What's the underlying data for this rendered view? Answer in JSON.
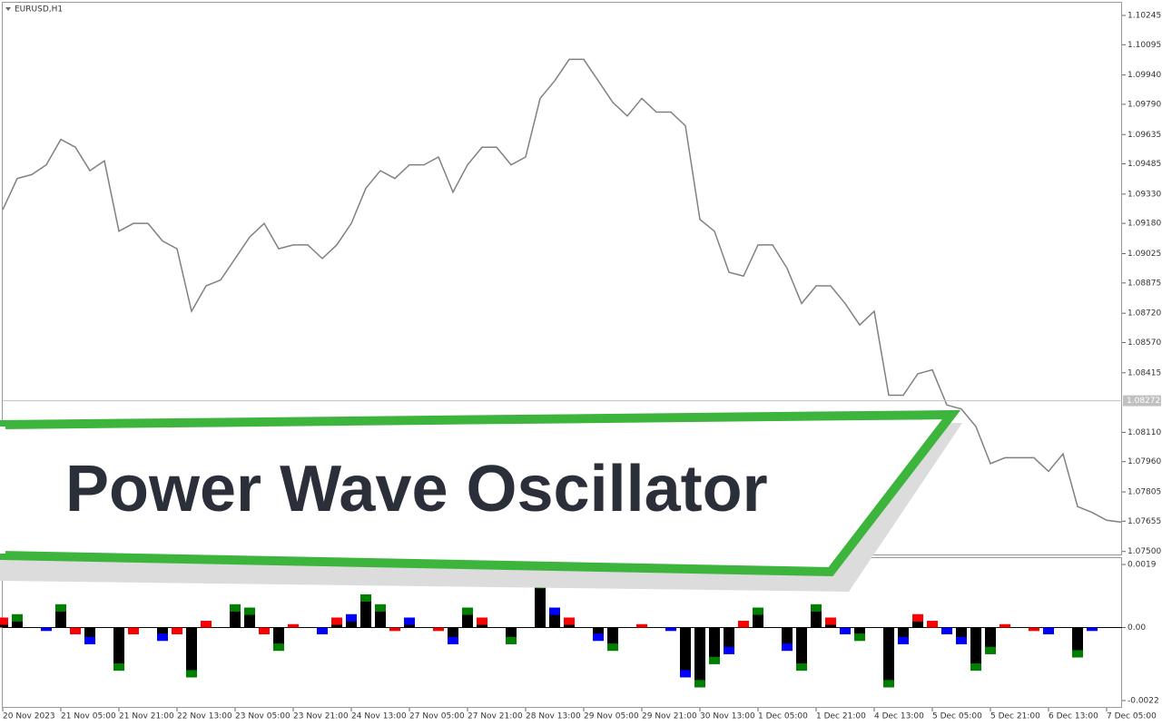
{
  "chart_data": [
    {
      "type": "line",
      "title": "EURUSD,H1",
      "color": "#808080",
      "values": [
        1.0925,
        1.0941,
        1.0943,
        1.0948,
        1.0961,
        1.0957,
        1.0945,
        1.095,
        1.0914,
        1.0918,
        1.0918,
        1.0909,
        1.0905,
        1.0873,
        1.0886,
        1.0889,
        1.09,
        1.0911,
        1.0918,
        1.0905,
        1.0907,
        1.0907,
        1.09,
        1.0907,
        1.0918,
        1.0936,
        1.0945,
        1.0941,
        1.0948,
        1.0948,
        1.0952,
        1.0934,
        1.0948,
        1.0957,
        1.0957,
        1.0948,
        1.0952,
        1.0982,
        1.0991,
        1.1002,
        1.1002,
        1.0991,
        1.098,
        1.0973,
        1.0982,
        1.0975,
        1.0975,
        1.0968,
        1.092,
        1.0914,
        1.0893,
        1.0891,
        1.0907,
        1.0907,
        1.0895,
        1.0877,
        1.0886,
        1.0886,
        1.0877,
        1.0866,
        1.0873,
        1.083,
        1.083,
        1.0841,
        1.0843,
        1.0825,
        1.0823,
        1.0814,
        1.0795,
        1.0798,
        1.0798,
        1.0798,
        1.0791,
        1.08,
        1.0773,
        1.077,
        1.0766,
        1.0765
      ],
      "ylim": [
        1.0748,
        1.1031
      ],
      "yticks": [
        1.10245,
        1.10095,
        {
          "value": 1.0994,
          "label": "1.09940"
        },
        {
          "value": 1.0979,
          "label": "1.09790"
        },
        1.09635,
        1.09485,
        {
          "value": 1.0933,
          "label": "1.09330"
        },
        {
          "value": 1.0918,
          "label": "1.09180"
        },
        1.09025,
        1.08875,
        {
          "value": 1.0872,
          "label": "1.08720"
        },
        {
          "value": 1.0857,
          "label": "1.08570"
        },
        1.08415,
        {
          "value": 1.0811,
          "label": "1.08110"
        },
        {
          "value": 1.0796,
          "label": "1.07960"
        },
        1.07805,
        1.07655,
        {
          "value": 1.075,
          "label": "1.07500"
        }
      ],
      "current_price": 1.08272
    },
    {
      "type": "bar",
      "color": "#000000",
      "categories": [
        "20 Nov 2023",
        null,
        null,
        null,
        "21 Nov 05:00",
        null,
        null,
        null,
        "21 Nov 21:00",
        null,
        null,
        null,
        "22 Nov 13:00",
        null,
        null,
        null,
        "23 Nov 05:00",
        null,
        null,
        null,
        "23 Nov 21:00",
        null,
        null,
        null,
        "24 Nov 13:00",
        null,
        null,
        null,
        "27 Nov 05:00",
        null,
        null,
        null,
        "27 Nov 21:00",
        null,
        null,
        null,
        "28 Nov 13:00",
        null,
        null,
        null,
        "29 Nov 05:00",
        null,
        null,
        null,
        "29 Nov 21:00",
        null,
        null,
        null,
        "30 Nov 13:00",
        null,
        null,
        null,
        "1 Dec 05:00",
        null,
        null,
        null,
        "1 Dec 21:00",
        null,
        null,
        null,
        "4 Dec 13:00",
        null,
        null,
        null,
        "5 Dec 05:00",
        null,
        null,
        null,
        "5 Dec 21:00",
        null,
        null,
        null,
        "6 Dec 13:00",
        null,
        null,
        null,
        "7 Dec 05:00",
        null
      ],
      "values": [
        0.0003,
        0.0004,
        0,
        -0.0001,
        0.0007,
        -0.0002,
        -0.0005,
        0,
        -0.0013,
        -0.0002,
        0,
        -0.0004,
        -0.0002,
        -0.0015,
        0.0002,
        0,
        0.0007,
        0.0006,
        -0.0002,
        -0.0007,
        0.0001,
        0,
        -0.0002,
        0.0003,
        0.0004,
        0.001,
        0.0007,
        -0.0001,
        0.0003,
        0,
        -0.0001,
        -0.0005,
        0.0006,
        0.0003,
        0,
        -0.0005,
        0,
        0.0014,
        0.0006,
        0.0003,
        0,
        -0.0004,
        -0.0007,
        0,
        0.0001,
        0,
        -0.0001,
        -0.0015,
        -0.0018,
        -0.0011,
        -0.0008,
        0.0002,
        0.0006,
        0,
        -0.0007,
        -0.0013,
        0.0007,
        0.0003,
        -0.0002,
        -0.0004,
        0,
        -0.0018,
        -0.0005,
        0.0004,
        0.0002,
        -0.0002,
        -0.0005,
        -0.0013,
        -0.0008,
        0.0001,
        0,
        -0.0001,
        -0.0002,
        0,
        -0.0009,
        -0.0001,
        0,
        0
      ],
      "tip_colors": [
        "#ff0000",
        "#008000",
        "#ff0000",
        "#0000ff",
        "#008000",
        "#ff0000",
        "#0000ff",
        "#ff0000",
        "#008000",
        "#ff0000",
        "#ff0000",
        "#0000ff",
        "#ff0000",
        "#008000",
        "#ff0000",
        "#ff0000",
        "#008000",
        "#008000",
        "#ff0000",
        "#008000",
        "#ff0000",
        "#ff0000",
        "#0000ff",
        "#ff0000",
        "#0000ff",
        "#008000",
        "#008000",
        "#ff0000",
        "#0000ff",
        "#ff0000",
        "#ff0000",
        "#0000ff",
        "#008000",
        "#ff0000",
        "#ff0000",
        "#008000",
        "#ff0000",
        "#008000",
        "#0000ff",
        "#ff0000",
        "#ff0000",
        "#0000ff",
        "#008000",
        "#ff0000",
        "#ff0000",
        "#ff0000",
        "#0000ff",
        "#0000ff",
        "#008000",
        "#008000",
        "#0000ff",
        "#ff0000",
        "#008000",
        "#ff0000",
        "#0000ff",
        "#008000",
        "#008000",
        "#ff0000",
        "#0000ff",
        "#008000",
        "#ff0000",
        "#008000",
        "#0000ff",
        "#ff0000",
        "#ff0000",
        "#0000ff",
        "#0000ff",
        "#008000",
        "#008000",
        "#ff0000",
        "#ff0000",
        "#ff0000",
        "#0000ff",
        "#ff0000",
        "#008000",
        "#0000ff",
        "#ff0000",
        "#ff0000"
      ],
      "ylim": [
        -0.00242,
        0.00212
      ],
      "yticks": [
        0.0019,
        {
          "value": 0,
          "label": "0.00"
        },
        -0.0022
      ]
    }
  ],
  "banner": {
    "title": "Power Wave Oscillator"
  }
}
